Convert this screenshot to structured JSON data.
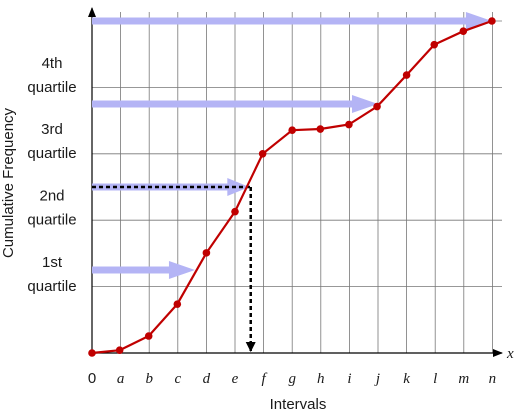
{
  "chart_data": {
    "type": "line",
    "xlabel": "Intervals",
    "ylabel": "Cumulative Frequency",
    "x_axis_symbol": "x",
    "x_tick_labels": [
      "0",
      "a",
      "b",
      "c",
      "d",
      "e",
      "f",
      "g",
      "h",
      "i",
      "j",
      "k",
      "l",
      "m",
      "n"
    ],
    "grid": true,
    "series": [
      {
        "color": "#c00000",
        "x": [
          0,
          0.967,
          1.983,
          2.983,
          4.0,
          5.0,
          5.967,
          7.0,
          7.983,
          8.983,
          9.967,
          11.0,
          11.967,
          12.983,
          13.983
        ],
        "y": [
          0.0,
          0.042,
          0.256,
          0.736,
          1.508,
          2.129,
          3.0,
          3.356,
          3.373,
          3.441,
          3.712,
          4.186,
          4.644,
          4.847,
          5.0
        ]
      }
    ],
    "quartile_labels": [
      {
        "line1": "1st",
        "line2": "quartile"
      },
      {
        "line1": "2nd",
        "line2": "quartile"
      },
      {
        "line1": "3rd",
        "line2": "quartile"
      },
      {
        "line1": "4th",
        "line2": "quartile"
      }
    ],
    "quartile_arrows": [
      {
        "y": 1.25,
        "x_end": 3.6,
        "style": "arrow"
      },
      {
        "y": 2.5,
        "x_end": 5.5,
        "style": "dotted"
      },
      {
        "y": 3.75,
        "x_end": 10.0,
        "style": "arrow"
      },
      {
        "y": 5.0,
        "x_end": 13.983,
        "style": "arrow"
      }
    ],
    "median_drop": {
      "x": 5.55,
      "y_from": 2.5,
      "y_to": 0
    },
    "colors": {
      "curve": "#c00000",
      "arrow": "#b4b4f5",
      "grid": "#777777",
      "axis": "#000000"
    }
  }
}
